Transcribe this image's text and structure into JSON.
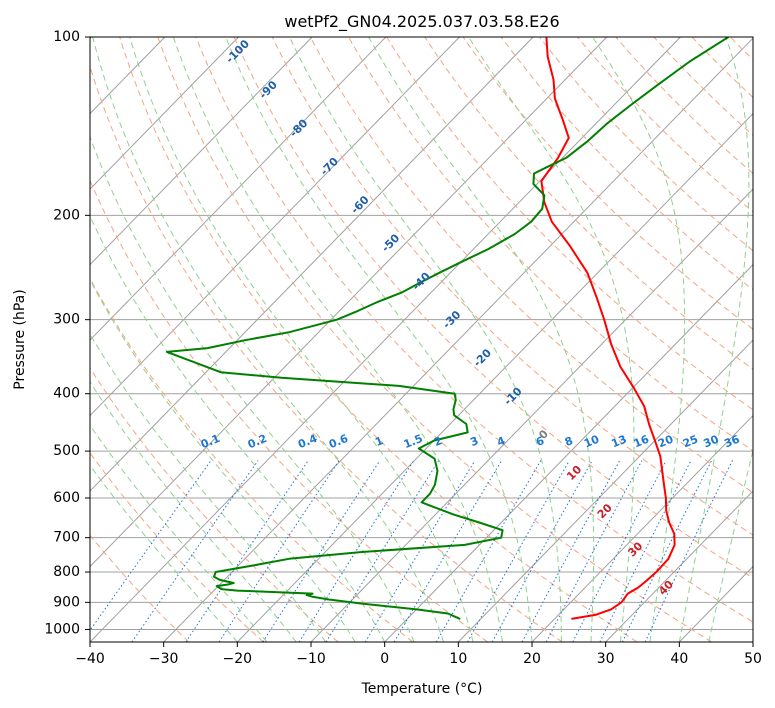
{
  "chart_data": {
    "type": "line",
    "subtype": "skew-T log-P diagram",
    "title": "wetPf2_GN04.2025.037.03.58.E26",
    "xlabel": "Temperature (°C)",
    "ylabel": "Pressure (hPa)",
    "xlim": [
      -40,
      50
    ],
    "ylim": [
      1050,
      100
    ],
    "y_scale": "log",
    "x_ticks": [
      "−40",
      "−30",
      "−20",
      "−10",
      "0",
      "10",
      "20",
      "30",
      "40",
      "50"
    ],
    "y_ticks": [
      "100",
      "200",
      "300",
      "400",
      "500",
      "600",
      "700",
      "800",
      "900",
      "1000"
    ],
    "grid": true,
    "series": [
      {
        "color": "#ff0000",
        "kind": "temperature",
        "points": [
          [
            22.3,
            960
          ],
          [
            25.0,
            945
          ],
          [
            26.4,
            925
          ],
          [
            26.9,
            900
          ],
          [
            26.6,
            870
          ],
          [
            27.2,
            850
          ],
          [
            27.4,
            830
          ],
          [
            27.6,
            800
          ],
          [
            27.5,
            760
          ],
          [
            26.5,
            720
          ],
          [
            25.0,
            690
          ],
          [
            22.8,
            660
          ],
          [
            20.8,
            630
          ],
          [
            19.1,
            600
          ],
          [
            17.1,
            570
          ],
          [
            15.0,
            540
          ],
          [
            12.8,
            510
          ],
          [
            10.0,
            480
          ],
          [
            7.0,
            450
          ],
          [
            4.0,
            420
          ],
          [
            0.0,
            390
          ],
          [
            -4.5,
            360
          ],
          [
            -8.7,
            330
          ],
          [
            -12.9,
            300
          ],
          [
            -16.9,
            275
          ],
          [
            -21.4,
            250
          ],
          [
            -27.4,
            225
          ],
          [
            -33.0,
            205
          ],
          [
            -36.6,
            190
          ],
          [
            -39.8,
            175
          ],
          [
            -40.6,
            160
          ],
          [
            -41.8,
            148
          ],
          [
            -45.0,
            138
          ],
          [
            -48.9,
            127
          ],
          [
            -51.6,
            118
          ],
          [
            -55.4,
            108
          ],
          [
            -58.2,
            100
          ]
        ]
      },
      {
        "color": "#008000",
        "kind": "dewpoint",
        "points": [
          [
            7.2,
            960
          ],
          [
            4.8,
            940
          ],
          [
            0.0,
            925
          ],
          [
            -8.0,
            905
          ],
          [
            -13.2,
            890
          ],
          [
            -15.9,
            880
          ],
          [
            -16.8,
            875
          ],
          [
            -16.2,
            870
          ],
          [
            -26.8,
            860
          ],
          [
            -29.2,
            855
          ],
          [
            -30.2,
            845
          ],
          [
            -29.0,
            840
          ],
          [
            -28.3,
            835
          ],
          [
            -30.6,
            825
          ],
          [
            -31.8,
            815
          ],
          [
            -32.2,
            800
          ],
          [
            -28.0,
            780
          ],
          [
            -24.0,
            760
          ],
          [
            -15.0,
            740
          ],
          [
            -2.0,
            720
          ],
          [
            2.0,
            700
          ],
          [
            1.2,
            680
          ],
          [
            -3.0,
            660
          ],
          [
            -7.5,
            640
          ],
          [
            -11.5,
            620
          ],
          [
            -13.5,
            610
          ],
          [
            -13.5,
            590
          ],
          [
            -14.0,
            570
          ],
          [
            -15.5,
            540
          ],
          [
            -17.5,
            515
          ],
          [
            -21.0,
            495
          ],
          [
            -20.0,
            480
          ],
          [
            -16.5,
            465
          ],
          [
            -17.8,
            450
          ],
          [
            -20.6,
            435
          ],
          [
            -21.5,
            425
          ],
          [
            -22.4,
            410
          ],
          [
            -23.4,
            400
          ],
          [
            -32.0,
            388
          ],
          [
            -49.0,
            376
          ],
          [
            -58.0,
            368
          ],
          [
            -68.0,
            340
          ],
          [
            -63.0,
            335
          ],
          [
            -59.0,
            325
          ],
          [
            -54.0,
            315
          ],
          [
            -49.2,
            300
          ],
          [
            -47.5,
            290
          ],
          [
            -46.0,
            280
          ],
          [
            -44.0,
            270
          ],
          [
            -42.8,
            260
          ],
          [
            -41.5,
            250
          ],
          [
            -40.0,
            240
          ],
          [
            -38.0,
            228
          ],
          [
            -36.4,
            215
          ],
          [
            -35.8,
            205
          ],
          [
            -36.0,
            195
          ],
          [
            -37.5,
            185
          ],
          [
            -40.5,
            177
          ],
          [
            -41.8,
            170
          ],
          [
            -40.7,
            165
          ],
          [
            -39.5,
            160
          ],
          [
            -38.8,
            150
          ],
          [
            -38.5,
            140
          ],
          [
            -37.7,
            130
          ],
          [
            -36.7,
            120
          ],
          [
            -35.5,
            110
          ],
          [
            -33.5,
            100
          ]
        ]
      }
    ],
    "dry_adiabat_labels": [
      "-100",
      "-90",
      "-80",
      "-70",
      "-60",
      "-50",
      "-40",
      "-30",
      "-20",
      "-10",
      "0",
      "10",
      "20",
      "30",
      "40"
    ],
    "mixing_ratio_labels": [
      "0.1",
      "0.2",
      "0.4",
      "0.6",
      "1",
      "1.5",
      "2",
      "3",
      "4",
      "6",
      "8",
      "10",
      "13",
      "16",
      "20",
      "25",
      "30",
      "36"
    ],
    "colors": {
      "temperature": "#ff0000",
      "dewpoint": "#008000",
      "isotherm": "#a0a0a0",
      "dry_adiabat": "#f4a582",
      "moist_adiabat": "#8fd18f",
      "mixing_ratio": "#1f77d4",
      "label_blue": "#1f5fa8",
      "label_red": "#c8202a",
      "label_zero": "#808080"
    }
  }
}
